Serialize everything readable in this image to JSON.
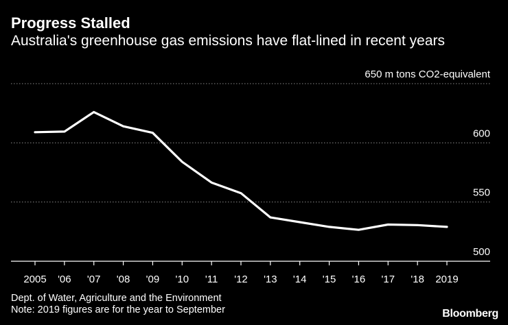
{
  "header": {
    "title": "Progress Stalled",
    "subtitle": "Australia's greenhouse gas emissions have flat-lined in recent years"
  },
  "footer": {
    "source": "Dept. of Water, Agriculture and the Environment",
    "note": "Note: 2019 figures are for the year to September",
    "brand": "Bloomberg"
  },
  "colors": {
    "background": "#000000",
    "line": "#ffffff",
    "grid": "#8a8a8a",
    "text": "#ffffff"
  },
  "chart_data": {
    "type": "line",
    "title": "Progress Stalled",
    "subtitle": "Australia's greenhouse gas emissions have flat-lined in recent years",
    "xlabel": "",
    "ylabel": "",
    "unit_label": "650 m tons CO2-equivalent",
    "categories": [
      "2005",
      "'06",
      "'07",
      "'08",
      "'09",
      "'10",
      "'11",
      "'12",
      "'13",
      "'14",
      "'15",
      "'16",
      "'17",
      "'18",
      "2019"
    ],
    "series": [
      {
        "name": "Greenhouse gas emissions (m tons CO2-equivalent)",
        "values": [
          609,
          609.5,
          626,
          614,
          608.5,
          584,
          566.5,
          557.5,
          537,
          533,
          529,
          526.5,
          531,
          530.5,
          529
        ]
      }
    ],
    "ylim": [
      500,
      650
    ],
    "yticks": [
      500,
      550,
      600,
      650
    ],
    "ytick_labels": [
      "500",
      "550",
      "600",
      "650"
    ],
    "grid": "horizontal dotted",
    "y_axis_side": "right"
  }
}
